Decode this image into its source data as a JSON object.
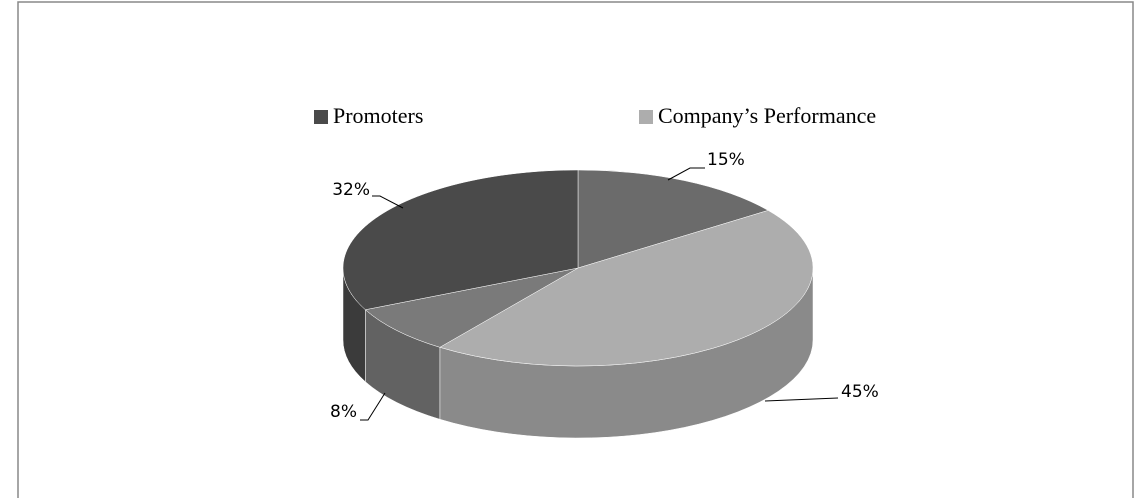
{
  "chart_data": {
    "type": "pie3d",
    "categories": [
      null,
      "Company’s Performance",
      null,
      "Promoters"
    ],
    "values": [
      15,
      45,
      8,
      32
    ],
    "value_labels": [
      "15%",
      "45%",
      "8%",
      "32%"
    ],
    "colors": [
      "#6b6b6b",
      "#adadad",
      "#7a7a7a",
      "#4a4a4a"
    ],
    "legend": "top"
  }
}
